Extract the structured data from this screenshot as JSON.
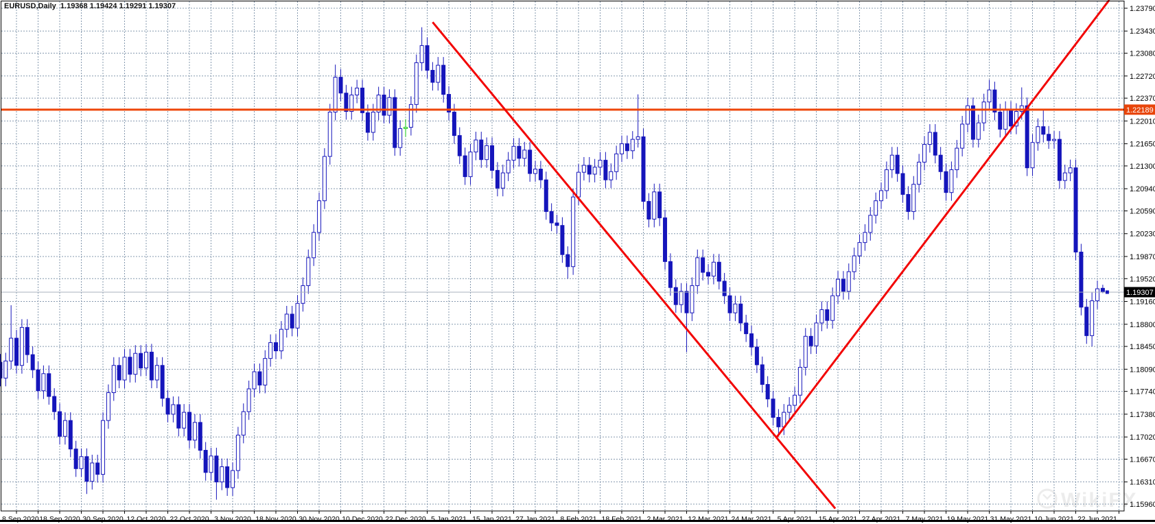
{
  "header": {
    "title_line": "EURUSD,Daily  1.19368 1.19424 1.19291 1.19307",
    "symbol": "EURUSD",
    "timeframe": "Daily"
  },
  "watermark": {
    "text": "WikiFX"
  },
  "colors": {
    "candle": "#1515bb",
    "candle_up_fill": "#ffffff",
    "green_candle": "#12c712",
    "grid": "#8498ae",
    "trendline": "#f20505",
    "hline": "#ee4609",
    "hline_label_bg": "#e8450a",
    "price_line": "#a9b2bc",
    "price_label_bg": "#000000",
    "label_text": "#ffffff",
    "axis_text": "#000000",
    "watermark_color": "#ececec",
    "border": "#000000"
  },
  "chart_data": {
    "type": "candlestick",
    "symbol": "EURUSD",
    "timeframe": "Daily",
    "last_candle": {
      "open": 1.19368,
      "high": 1.19424,
      "low": 1.19291,
      "close": 1.19307
    },
    "price_range": {
      "top": 1.2379,
      "bottom": 1.1596
    },
    "y_axis_labels": [
      "1.23790",
      "1.23430",
      "1.23080",
      "1.22720",
      "1.22370",
      "1.22010",
      "1.21650",
      "1.21300",
      "1.20940",
      "1.20590",
      "1.20230",
      "1.19870",
      "1.19520",
      "1.19160",
      "1.18800",
      "1.18450",
      "1.18090",
      "1.17740",
      "1.17380",
      "1.17020",
      "1.16670",
      "1.16310",
      "1.15960"
    ],
    "x_axis_labels": [
      "8 Sep 2020",
      "18 Sep 2020",
      "30 Sep 2020",
      "12 Oct 2020",
      "22 Oct 2020",
      "3 Nov 2020",
      "18 Nov 2020",
      "30 Nov 2020",
      "10 Dec 2020",
      "22 Dec 2020",
      "5 Jan 2021",
      "15 Jan 2021",
      "27 Jan 2021",
      "8 Feb 2021",
      "18 Feb 2021",
      "2 Mar 2021",
      "12 Mar 2021",
      "24 Mar 2021",
      "5 Apr 2021",
      "15 Apr 2021",
      "27 Apr 2021",
      "7 May 2021",
      "19 May 2021",
      "31 May 2021",
      "10 Jun 2021",
      "22 Jun 2021"
    ],
    "bars_per_label": 8,
    "first_label_bar": 3,
    "first_open": 1.182,
    "default_wick": 0.0013,
    "closes": [
      1.1795,
      1.1822,
      1.1858,
      1.1815,
      1.1875,
      1.1832,
      1.1808,
      1.1775,
      1.1802,
      1.1766,
      1.1742,
      1.1703,
      1.1728,
      1.1683,
      1.1652,
      1.1671,
      1.1632,
      1.1661,
      1.1643,
      1.1728,
      1.1772,
      1.1815,
      1.1792,
      1.1828,
      1.1801,
      1.1834,
      1.1811,
      1.1836,
      1.1792,
      1.1815,
      1.1763,
      1.1738,
      1.1753,
      1.1716,
      1.1741,
      1.1697,
      1.1725,
      1.1681,
      1.1646,
      1.1672,
      1.1631,
      1.1655,
      1.1622,
      1.1649,
      1.1705,
      1.1742,
      1.1778,
      1.1805,
      1.1784,
      1.1826,
      1.1851,
      1.1838,
      1.1872,
      1.1896,
      1.1874,
      1.1913,
      1.1941,
      1.1985,
      1.2025,
      1.2075,
      1.2145,
      1.2215,
      1.227,
      1.2245,
      1.2216,
      1.2242,
      1.2253,
      1.2214,
      1.2183,
      1.2215,
      1.2242,
      1.221,
      1.2238,
      1.2159,
      1.2189,
      1.2191,
      1.2227,
      1.2293,
      1.232,
      1.2281,
      1.2262,
      1.2289,
      1.2243,
      1.2215,
      1.2178,
      1.2146,
      1.2113,
      1.2152,
      1.2171,
      1.214,
      1.2162,
      1.2123,
      1.2095,
      1.2119,
      1.2139,
      1.2161,
      1.2142,
      1.2155,
      1.2118,
      1.2125,
      1.2108,
      1.2058,
      1.204,
      1.2036,
      1.199,
      1.1971,
      1.2081,
      1.212,
      1.2131,
      1.2117,
      1.2128,
      1.2139,
      1.2108,
      1.2121,
      1.2149,
      1.2165,
      1.2154,
      1.2172,
      1.2176,
      1.2074,
      1.2046,
      1.2089,
      1.2048,
      1.1979,
      1.1938,
      1.1911,
      1.1932,
      1.1898,
      1.1941,
      1.1985,
      1.1962,
      1.1956,
      1.1978,
      1.1948,
      1.1925,
      1.1898,
      1.1912,
      1.1882,
      1.1865,
      1.1844,
      1.1816,
      1.1785,
      1.1762,
      1.1733,
      1.1718,
      1.1741,
      1.1752,
      1.1768,
      1.1812,
      1.1861,
      1.1846,
      1.1882,
      1.1903,
      1.1886,
      1.1925,
      1.1951,
      1.1932,
      1.1963,
      1.1988,
      1.2009,
      1.2025,
      1.2052,
      1.2075,
      1.2091,
      1.2124,
      1.2147,
      1.2118,
      1.2085,
      1.2058,
      1.2101,
      1.2136,
      1.2164,
      1.2183,
      1.2147,
      1.2121,
      1.2088,
      1.2124,
      1.2158,
      1.2196,
      1.2225,
      1.2172,
      1.2198,
      1.2231,
      1.225,
      1.2215,
      1.2188,
      1.2219,
      1.2193,
      1.2216,
      1.2225,
      1.2127,
      1.2167,
      1.2192,
      1.218,
      1.217,
      1.2172,
      1.2107,
      1.2119,
      1.2127,
      1.1994,
      1.1907,
      1.1862,
      1.1917,
      1.1936,
      1.19307
    ],
    "overrides": {
      "2": {
        "h": 1.191
      },
      "16": {
        "l": 1.1612
      },
      "40": {
        "l": 1.1603
      },
      "62": {
        "h": 1.229
      },
      "78": {
        "h": 1.2349
      },
      "105": {
        "l": 1.1952
      },
      "118": {
        "h": 1.2243
      },
      "127": {
        "l": 1.1836
      },
      "144": {
        "l": 1.1704
      },
      "183": {
        "h": 1.2266
      },
      "189": {
        "h": 1.2254
      },
      "193": {
        "h": 1.2218
      },
      "202": {
        "l": 1.1845
      },
      "204": {
        "o": 1.19368,
        "h": 1.19424,
        "l": 1.19291
      }
    },
    "green_bar_index": 75,
    "horizontal_line": {
      "price": 1.22189,
      "label": "1.22189"
    },
    "current_price_line": {
      "price": 1.19307,
      "label": "1.19307"
    },
    "trendlines": [
      {
        "name": "descending",
        "from_bar": 80.0,
        "from_price": 1.2357,
        "to_bar": 154.5,
        "to_price": 1.1589
      },
      {
        "name": "ascending",
        "from_bar": 143.7,
        "from_price": 1.1702,
        "to_bar": 205.2,
        "to_price": 1.2392
      }
    ],
    "grid": {
      "dashed": true,
      "legend_position": "none",
      "title": "EURUSD Daily"
    }
  }
}
